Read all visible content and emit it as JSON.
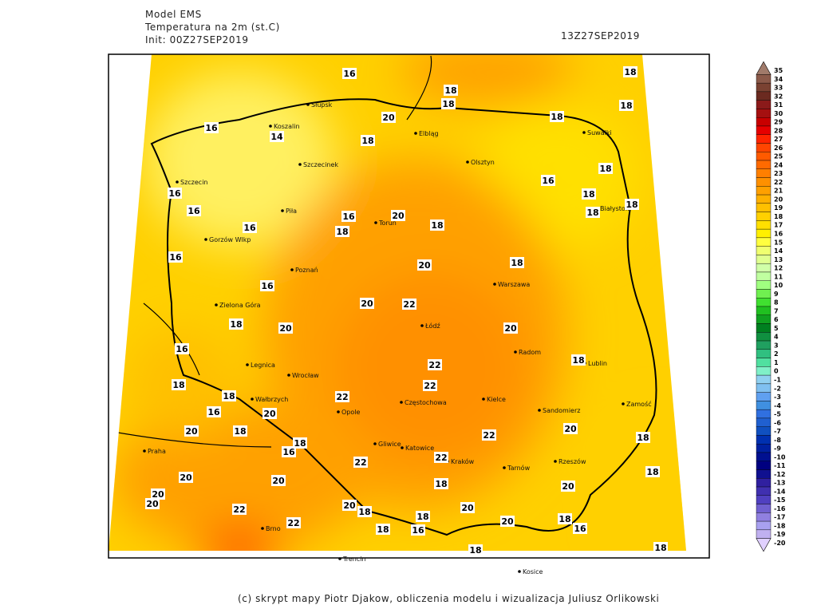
{
  "header": {
    "model": "Model EMS",
    "variable": "Temperatura na 2m (st.C)",
    "init": "Init: 00Z27SEP2019",
    "valid": "13Z27SEP2019"
  },
  "footer": "(c) skrypt mapy Piotr Djakow, obliczenia modelu i wizualizacja Juliusz Orlikowski",
  "colorbar": {
    "levels": [
      35,
      34,
      33,
      32,
      31,
      30,
      29,
      28,
      27,
      26,
      25,
      24,
      23,
      22,
      21,
      20,
      19,
      18,
      17,
      16,
      15,
      14,
      13,
      12,
      11,
      10,
      9,
      8,
      7,
      6,
      5,
      4,
      3,
      2,
      1,
      0,
      -1,
      -2,
      -3,
      -4,
      -5,
      -6,
      -7,
      -8,
      -9,
      -10,
      -11,
      -12,
      -13,
      -14,
      -15,
      -16,
      -17,
      -18,
      -19,
      -20
    ],
    "colors": [
      "#a07a6a",
      "#8b5a4a",
      "#7a4232",
      "#6b2a20",
      "#8b1a1a",
      "#a51010",
      "#c80000",
      "#e60000",
      "#ff2400",
      "#ff4500",
      "#ff5a00",
      "#ff6a00",
      "#ff7f00",
      "#ff9000",
      "#ffa000",
      "#ffb000",
      "#ffc000",
      "#ffd000",
      "#ffe000",
      "#fff000",
      "#ffff40",
      "#f0ff70",
      "#e0ff90",
      "#d0ffa8",
      "#c0ffa0",
      "#a0ff80",
      "#70f050",
      "#40e030",
      "#20c020",
      "#10a020",
      "#008020",
      "#109040",
      "#20a060",
      "#30c080",
      "#50e0a0",
      "#80f0c8",
      "#90d0f0",
      "#80c0f0",
      "#60a0f0",
      "#4090e0",
      "#3070e0",
      "#2060d0",
      "#1050c0",
      "#0030b0",
      "#0020a0",
      "#001090",
      "#000080",
      "#101090",
      "#3020a0",
      "#4030b0",
      "#5040c0",
      "#7060d0",
      "#9080e0",
      "#a8a0f0",
      "#c0b0f0",
      "#e0d0ff"
    ]
  },
  "cities": [
    "Słupsk",
    "Koszalin",
    "Szczecinek",
    "Szczecin",
    "Piła",
    "Gorzów Wlkp",
    "Poznań",
    "Zielona Góra",
    "Legnica",
    "Wrocław",
    "Wałbrzych",
    "Opole",
    "Praha",
    "Brno",
    "Trencin",
    "Kosice",
    "Elbląg",
    "Olsztyn",
    "Suwałki",
    "Białystok",
    "Toruń",
    "Warszawa",
    "Łódź",
    "Radom",
    "Lublin",
    "Kielce",
    "Częstochowa",
    "Gliwice",
    "Katowice",
    "Kraków",
    "Tarnów",
    "Rzeszów",
    "Zamość",
    "Sandomierz"
  ],
  "contour_labels": [
    16,
    18,
    18,
    18,
    18,
    18,
    20,
    16,
    14,
    18,
    18,
    16,
    16,
    18,
    18,
    18,
    16,
    16,
    20,
    18,
    18,
    16,
    16,
    20,
    18,
    16,
    20,
    22,
    18,
    20,
    20,
    16,
    22,
    18,
    22,
    18,
    18,
    22,
    16,
    20,
    20,
    18,
    22,
    20,
    18,
    18,
    16,
    22,
    22,
    20,
    20,
    18,
    20,
    18,
    20,
    20,
    22,
    20,
    18,
    20,
    18,
    22,
    18,
    16,
    20,
    18,
    16,
    18,
    18
  ]
}
